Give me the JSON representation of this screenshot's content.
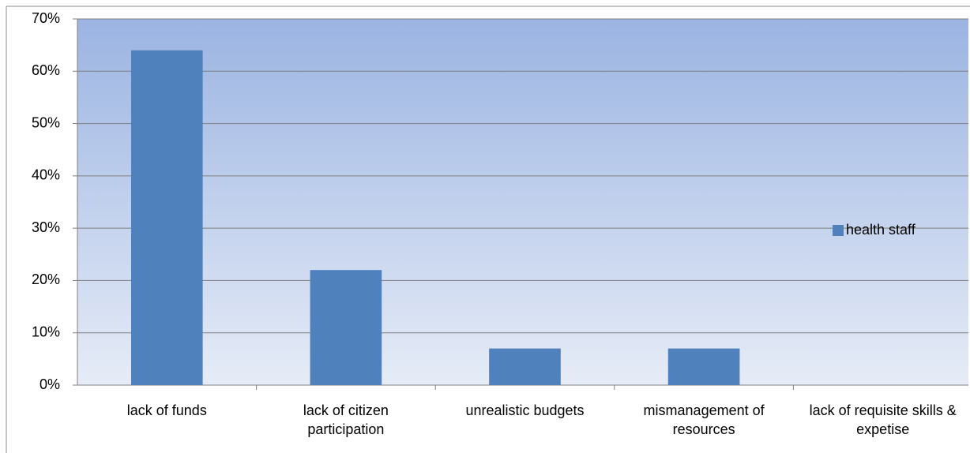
{
  "chart_data": {
    "type": "bar",
    "categories": [
      "lack of funds",
      "lack of citizen participation",
      "unrealistic budgets",
      "mismanagement of resources",
      "lack of requisite skills & expetise"
    ],
    "series": [
      {
        "name": "health staff",
        "color": "#4f81bd",
        "values": [
          64,
          22,
          7,
          7,
          0
        ]
      }
    ],
    "ylim": [
      0,
      70
    ],
    "yticks": [
      {
        "value": 0,
        "label": "0%"
      },
      {
        "value": 10,
        "label": "10%"
      },
      {
        "value": 20,
        "label": "20%"
      },
      {
        "value": 30,
        "label": "30%"
      },
      {
        "value": 40,
        "label": "40%"
      },
      {
        "value": 50,
        "label": "50%"
      },
      {
        "value": 60,
        "label": "60%"
      },
      {
        "value": 70,
        "label": "70%"
      }
    ],
    "grid": true,
    "legend": "right"
  }
}
